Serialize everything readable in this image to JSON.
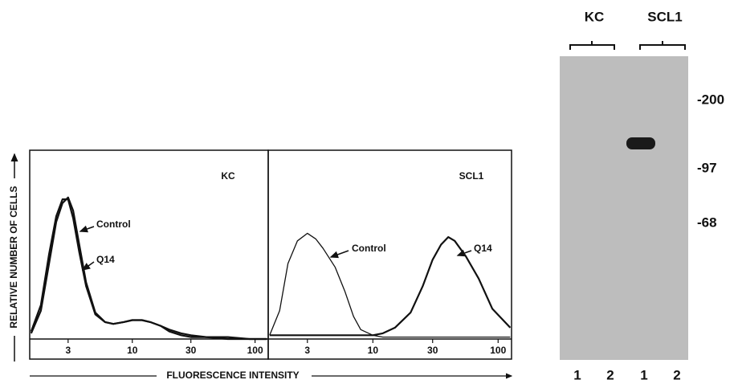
{
  "chart_data": [
    {
      "type": "line",
      "title": "KC",
      "xscale": "log",
      "xlim": [
        1.46,
        128
      ],
      "ylim": [
        0,
        100
      ],
      "xticks": [
        3,
        10,
        30,
        100
      ],
      "x": [
        1.5,
        1.8,
        2.1,
        2.4,
        2.7,
        3,
        3.3,
        3.7,
        4.2,
        5,
        6,
        7,
        8.5,
        10,
        12,
        14,
        17,
        20,
        25,
        30,
        40,
        60,
        90,
        125
      ],
      "series": [
        {
          "name": "Control",
          "color": "#111111",
          "values": [
            3,
            15,
            40,
            62,
            72,
            75,
            68,
            50,
            30,
            14,
            9,
            8,
            9,
            10,
            10,
            9,
            7,
            4,
            2,
            1,
            1,
            0,
            0,
            0
          ]
        },
        {
          "name": "Q14",
          "color": "#111111",
          "values": [
            4,
            18,
            45,
            65,
            74,
            74,
            64,
            46,
            28,
            13,
            9,
            8,
            9,
            10,
            10,
            9,
            7,
            5,
            3,
            2,
            1,
            1,
            0,
            0
          ]
        }
      ]
    },
    {
      "type": "line",
      "title": "SCL1",
      "xscale": "log",
      "xlim": [
        1.46,
        128
      ],
      "ylim": [
        0,
        100
      ],
      "xticks": [
        3,
        10,
        30,
        100
      ],
      "x": [
        1.5,
        1.8,
        2.1,
        2.5,
        3,
        3.5,
        4,
        5,
        6,
        7,
        8,
        10,
        12,
        15,
        20,
        25,
        30,
        35,
        40,
        45,
        55,
        70,
        90,
        125
      ],
      "series": [
        {
          "name": "Control",
          "color": "#111111",
          "values": [
            2,
            15,
            40,
            52,
            56,
            53,
            48,
            38,
            25,
            12,
            5,
            2,
            1,
            1,
            1,
            1,
            1,
            1,
            1,
            1,
            1,
            1,
            1,
            1
          ]
        },
        {
          "name": "Q14",
          "color": "#111111",
          "values": [
            2,
            2,
            2,
            2,
            2,
            2,
            2,
            2,
            2,
            2,
            2,
            2,
            3,
            6,
            14,
            28,
            42,
            50,
            54,
            52,
            44,
            32,
            16,
            6
          ]
        }
      ]
    }
  ],
  "figure": {
    "y_label": "RELATIVE NUMBER OF CELLS",
    "x_label": "FLUORESCENCE INTENSITY"
  },
  "blot": {
    "groups": [
      "KC",
      "SCL1"
    ],
    "lanes": [
      "1",
      "2",
      "1",
      "2"
    ],
    "markers": [
      "-200",
      "-97",
      "-68"
    ]
  }
}
